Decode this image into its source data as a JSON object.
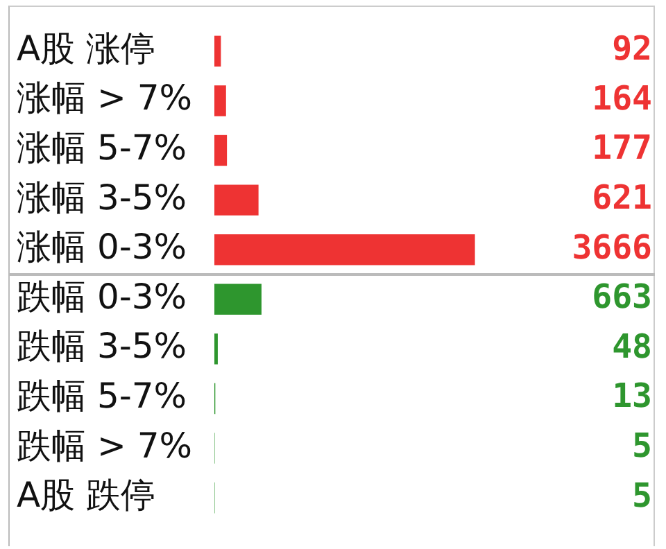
{
  "chart_data": {
    "type": "bar",
    "orientation": "horizontal",
    "categories": [
      "A股 涨停",
      "涨幅 > 7%",
      "涨幅 5-7%",
      "涨幅 3-5%",
      "涨幅 0-3%",
      "跌幅 0-3%",
      "跌幅 3-5%",
      "跌幅 5-7%",
      "跌幅 > 7%",
      "A股 跌停"
    ],
    "values": [
      92,
      164,
      177,
      621,
      3666,
      663,
      48,
      13,
      5,
      5
    ],
    "colors": [
      "#ee3333",
      "#ee3333",
      "#ee3333",
      "#ee3333",
      "#ee3333",
      "#2e962e",
      "#2e962e",
      "#2e962e",
      "#2e962e",
      "#2e962e"
    ],
    "data_labels": true,
    "tick_labels": "y",
    "legend": false
  }
}
